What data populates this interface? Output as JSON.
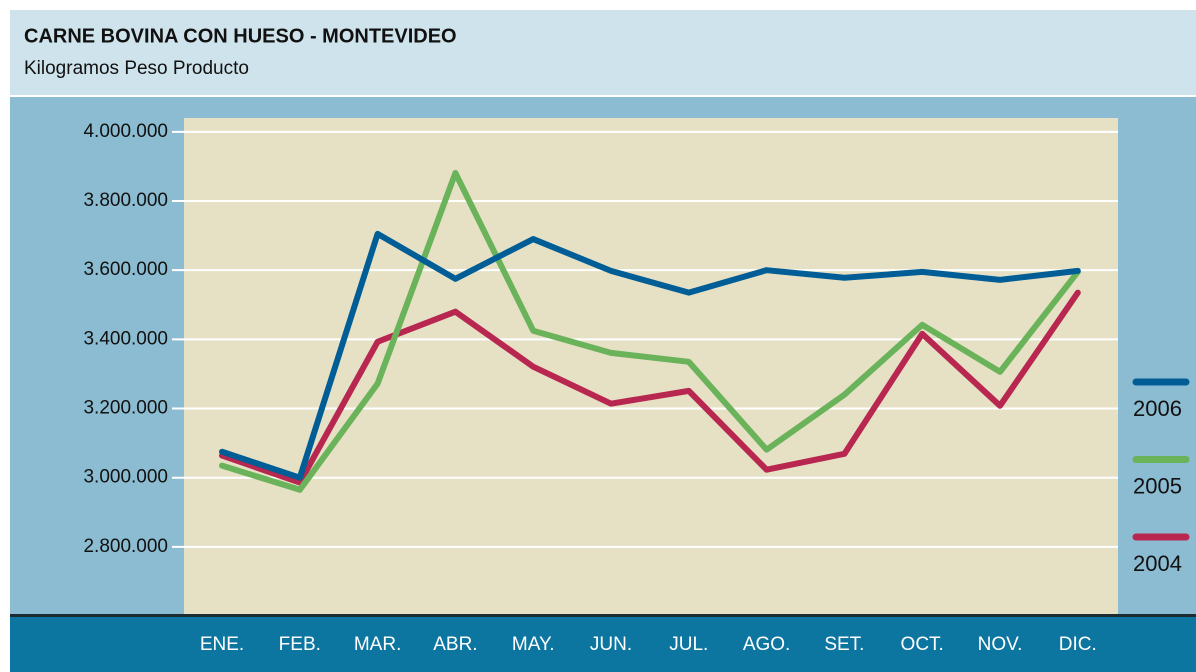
{
  "chart_data": {
    "type": "line",
    "title": "CARNE BOVINA CON HUESO - MONTEVIDEO",
    "subtitle": "Kilogramos Peso Producto",
    "categories": [
      "ENE.",
      "FEB.",
      "MAR.",
      "ABR.",
      "MAY.",
      "JUN.",
      "JUL.",
      "AGO.",
      "SET.",
      "OCT.",
      "NOV.",
      "DIC."
    ],
    "series": [
      {
        "name": "2006",
        "color": "#005d96",
        "values": [
          3075000,
          3000000,
          3705000,
          3575000,
          3690000,
          3598000,
          3535000,
          3600000,
          3578000,
          3595000,
          3572000,
          3598000
        ]
      },
      {
        "name": "2005",
        "color": "#6ab35a",
        "values": [
          3035000,
          2965000,
          3272000,
          3881000,
          3425000,
          3361000,
          3335000,
          3081000,
          3240000,
          3442000,
          3306000,
          3595000
        ]
      },
      {
        "name": "2004",
        "color": "#b8274f",
        "values": [
          3064000,
          2986000,
          3393000,
          3480000,
          3321000,
          3214000,
          3251000,
          3023000,
          3069000,
          3416000,
          3208000,
          3535000
        ]
      }
    ],
    "ylim": [
      2603000,
      4040000
    ],
    "yticks": [
      {
        "value": 2800000,
        "label": "2.800.000"
      },
      {
        "value": 3000000,
        "label": "3.000.000"
      },
      {
        "value": 3200000,
        "label": "3.200.000"
      },
      {
        "value": 3400000,
        "label": "3.400.000"
      },
      {
        "value": 3600000,
        "label": "3.600.000"
      },
      {
        "value": 3800000,
        "label": "3.800.000"
      },
      {
        "value": 4000000,
        "label": "4.000.000"
      }
    ],
    "grid": true,
    "legend": "right"
  }
}
